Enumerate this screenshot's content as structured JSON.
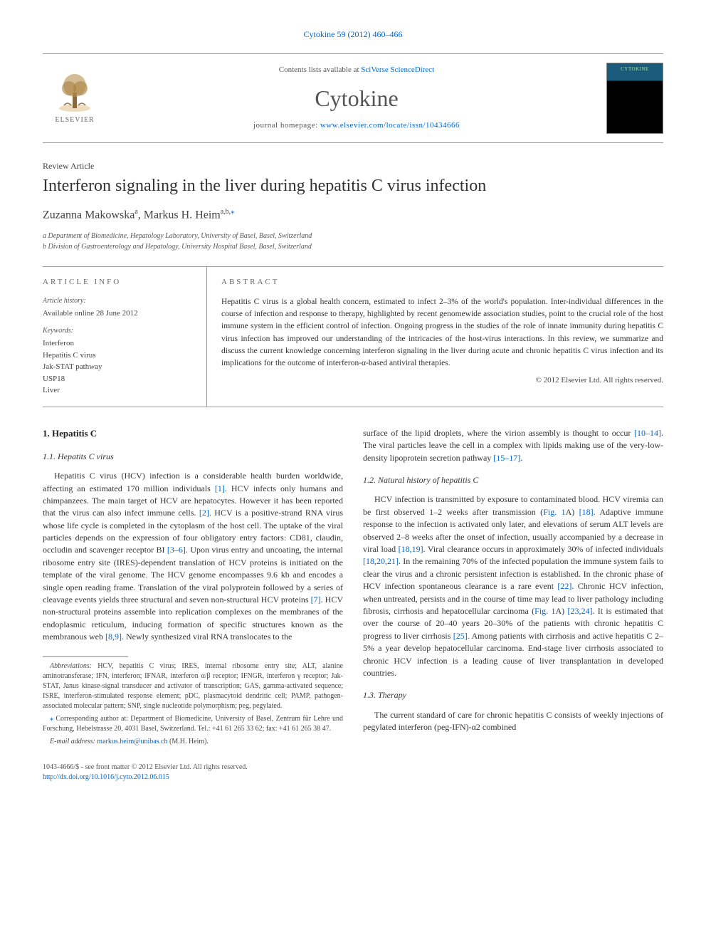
{
  "top_reference": "Cytokine 59 (2012) 460–466",
  "header": {
    "contents_prefix": "Contents lists available at ",
    "contents_link": "SciVerse ScienceDirect",
    "journal": "Cytokine",
    "homepage_prefix": "journal homepage: ",
    "homepage_url": "www.elsevier.com/locate/issn/10434666",
    "publisher": "ELSEVIER",
    "cover_title": "CYTOKINE"
  },
  "article": {
    "type": "Review Article",
    "title": "Interferon signaling in the liver during hepatitis C virus infection",
    "authors_html": "Zuzanna Makowska",
    "author1_sup": "a",
    "author2": "Markus H. Heim",
    "author2_sup": "a,b,",
    "corr_marker": "⁎",
    "affiliations": [
      "a Department of Biomedicine, Hepatology Laboratory, University of Basel, Basel, Switzerland",
      "b Division of Gastroenterology and Hepatology, University Hospital Basel, Basel, Switzerland"
    ]
  },
  "info": {
    "heading": "ARTICLE INFO",
    "history_label": "Article history:",
    "history_text": "Available online 28 June 2012",
    "keywords_label": "Keywords:",
    "keywords": [
      "Interferon",
      "Hepatitis C virus",
      "Jak-STAT pathway",
      "USP18",
      "Liver"
    ]
  },
  "abstract": {
    "heading": "ABSTRACT",
    "text": "Hepatitis C virus is a global health concern, estimated to infect 2–3% of the world's population. Inter-individual differences in the course of infection and response to therapy, highlighted by recent genomewide association studies, point to the crucial role of the host immune system in the efficient control of infection. Ongoing progress in the studies of the role of innate immunity during hepatitis C virus infection has improved our understanding of the intricacies of the host-virus interactions. In this review, we summarize and discuss the current knowledge concerning interferon signaling in the liver during acute and chronic hepatitis C virus infection and its implications for the outcome of interferon-α-based antiviral therapies.",
    "copyright": "© 2012 Elsevier Ltd. All rights reserved."
  },
  "body": {
    "section1_heading": "1. Hepatitis C",
    "sub11_heading": "1.1. Hepatits C virus",
    "sub11_text_a": "Hepatitis C virus (HCV) infection is a considerable health burden worldwide, affecting an estimated 170 million individuals ",
    "sub11_cite1": "[1]",
    "sub11_text_b": ". HCV infects only humans and chimpanzees. The main target of HCV are hepatocytes. However it has been reported that the virus can also infect immune cells. ",
    "sub11_cite2": "[2]",
    "sub11_text_c": ". HCV is a positive-strand RNA virus whose life cycle is completed in the cytoplasm of the host cell. The uptake of the viral particles depends on the expression of four obligatory entry factors: CD81, claudin, occludin and scavenger receptor BI ",
    "sub11_cite3": "[3–6]",
    "sub11_text_d": ". Upon virus entry and uncoating, the internal ribosome entry site (IRES)-dependent translation of HCV proteins is initiated on the template of the viral genome. The HCV genome encompasses 9.6 kb and encodes a single open reading frame. Translation of the viral polyprotein followed by a series of cleavage events yields three structural and seven non-structural HCV proteins ",
    "sub11_cite4": "[7]",
    "sub11_text_e": ". HCV non-structural proteins assemble into replication complexes on the membranes of the endoplasmic reticulum, inducing formation of specific structures known as the membranous web ",
    "sub11_cite5": "[8,9]",
    "sub11_text_f": ". Newly synthesized viral RNA translocates to the",
    "col2_top_a": "surface of the lipid droplets, where the virion assembly is thought to occur ",
    "col2_cite1": "[10–14]",
    "col2_top_b": ". The viral particles leave the cell in a complex with lipids making use of the very-low-density lipoprotein secretion pathway ",
    "col2_cite2": "[15–17]",
    "col2_top_c": ".",
    "sub12_heading": "1.2. Natural history of hepatitis C",
    "sub12_a": "HCV infection is transmitted by exposure to contaminated blood. HCV viremia can be first observed 1–2 weeks after transmission (",
    "sub12_fig1": "Fig. 1",
    "sub12_a2": "A) ",
    "sub12_cite1": "[18]",
    "sub12_b": ". Adaptive immune response to the infection is activated only later, and elevations of serum ALT levels are observed 2–8 weeks after the onset of infection, usually accompanied by a decrease in viral load ",
    "sub12_cite2": "[18,19]",
    "sub12_c": ". Viral clearance occurs in approximately 30% of infected individuals ",
    "sub12_cite3": "[18,20,21]",
    "sub12_d": ". In the remaining 70% of the infected population the immune system fails to clear the virus and a chronic persistent infection is established. In the chronic phase of HCV infection spontaneous clearance is a rare event ",
    "sub12_cite4": "[22]",
    "sub12_e": ". Chronic HCV infection, when untreated, persists and in the course of time may lead to liver pathology including fibrosis, cirrhosis and hepatocellular carcinoma (",
    "sub12_fig2": "Fig. 1",
    "sub12_e2": "A) ",
    "sub12_cite5": "[23,24]",
    "sub12_f": ". It is estimated that over the course of 20–40 years 20–30% of the patients with chronic hepatitis C progress to liver cirrhosis ",
    "sub12_cite6": "[25]",
    "sub12_g": ". Among patients with cirrhosis and active hepatitis C 2–5% a year develop hepatocellular carcinoma. End-stage liver cirrhosis associated to chronic HCV infection is a leading cause of liver transplantation in developed countries.",
    "sub13_heading": "1.3. Therapy",
    "sub13_a": "The current standard of care for chronic hepatitis C consists of weekly injections of pegylated interferon (peg-IFN)-α2 combined"
  },
  "footnotes": {
    "abbrev_label": "Abbreviations:",
    "abbrev_text": " HCV, hepatitis C virus; IRES, internal ribosome entry site; ALT, alanine aminotransferase; IFN, interferon; IFNAR, interferon α/β receptor; IFNGR, interferon γ receptor; Jak-STAT, Janus kinase-signal transducer and activator of transcription; GAS, gamma-activated sequence; ISRE, interferon-stimulated response element; pDC, plasmacytoid dendritic cell; PAMP, pathogen-associated molecular pattern; SNP, single nucleotide polymorphism; peg, pegylated.",
    "corr_marker": "⁎",
    "corr_text": " Corresponding author at: Department of Biomedicine, University of Basel, Zentrum für Lehre und Forschung, Hebelstrasse 20, 4031 Basel, Switzerland. Tel.: +41 61 265 33 62; fax: +41 61 265 38 47.",
    "email_label": "E-mail address: ",
    "email": "markus.heim@unibas.ch",
    "email_suffix": " (M.H. Heim)."
  },
  "footer": {
    "issn_line": "1043-4666/$ - see front matter © 2012 Elsevier Ltd. All rights reserved.",
    "doi": "http://dx.doi.org/10.1016/j.cyto.2012.06.015"
  },
  "colors": {
    "link": "#0066cc",
    "text": "#333333",
    "rule": "#999999",
    "background": "#ffffff"
  }
}
